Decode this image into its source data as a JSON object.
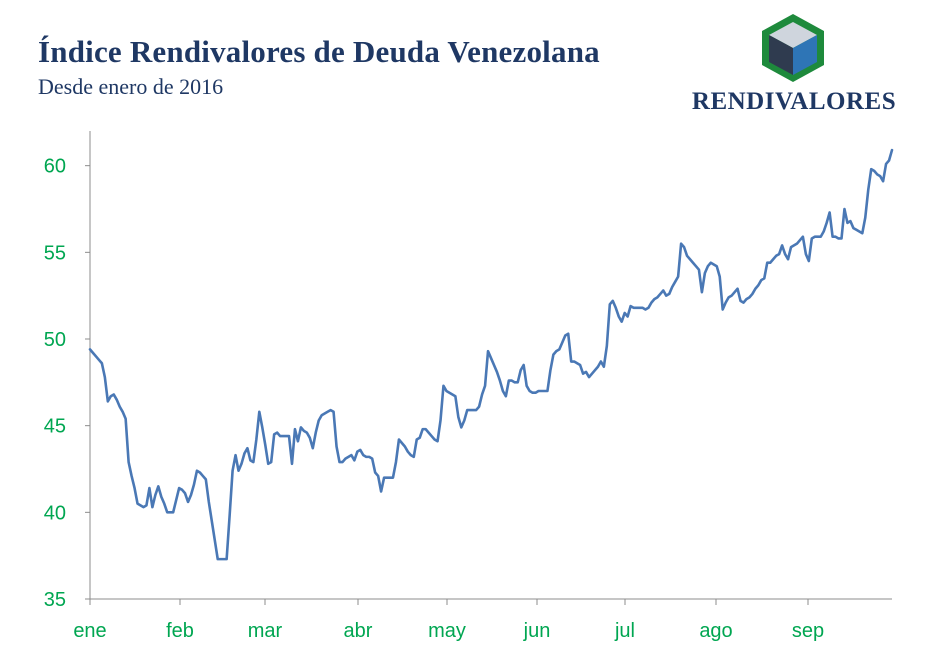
{
  "title": "Índice Rendivalores de Deuda Venezolana",
  "subtitle": "Desde enero de 2016",
  "logo": {
    "text": "RENDIVALORES",
    "colors": {
      "green": "#1e8a3c",
      "blue": "#2e75b6",
      "dark": "#2f3b4f",
      "light": "#cfd5dd"
    }
  },
  "colors": {
    "line": "#4a78b5",
    "tick_text": "#00a651",
    "title": "#1f3864",
    "axis": "#8c8c8c"
  },
  "chart_data": {
    "type": "line",
    "title": "Índice Rendivalores de Deuda Venezolana",
    "xlabel": "",
    "ylabel": "",
    "ylim": [
      35,
      62
    ],
    "yticks": [
      35,
      40,
      45,
      50,
      55,
      60
    ],
    "xticks": [
      "ene",
      "feb",
      "mar",
      "abr",
      "may",
      "jun",
      "jul",
      "ago",
      "sep"
    ],
    "grid": false,
    "series": [
      {
        "values": [
          49.4,
          49.2,
          49.0,
          48.8,
          48.6,
          47.8,
          46.4,
          46.7,
          46.8,
          46.5,
          46.1,
          45.8,
          45.4,
          42.9,
          42.1,
          41.4,
          40.5,
          40.4,
          40.3,
          40.4,
          41.4,
          40.3,
          41.0,
          41.5,
          40.9,
          40.5,
          40.0,
          40.0,
          40.0,
          40.7,
          41.4,
          41.3,
          41.1,
          40.6,
          41.0,
          41.6,
          42.4,
          42.3,
          42.1,
          41.9,
          40.6,
          39.5,
          38.4,
          37.3,
          37.3,
          37.3,
          37.3,
          39.8,
          42.4,
          43.3,
          42.4,
          42.8,
          43.4,
          43.7,
          43.0,
          42.9,
          44.2,
          45.8,
          44.9,
          43.9,
          42.8,
          42.9,
          44.5,
          44.6,
          44.4,
          44.4,
          44.4,
          44.4,
          42.8,
          44.8,
          44.1,
          44.9,
          44.7,
          44.6,
          44.3,
          43.7,
          44.6,
          45.3,
          45.6,
          45.7,
          45.8,
          45.9,
          45.8,
          43.8,
          42.9,
          42.9,
          43.1,
          43.2,
          43.3,
          43.0,
          43.5,
          43.6,
          43.3,
          43.2,
          43.2,
          43.1,
          42.3,
          42.1,
          41.2,
          42.0,
          42.0,
          42.0,
          42.0,
          42.9,
          44.2,
          44.0,
          43.8,
          43.5,
          43.3,
          43.2,
          44.2,
          44.3,
          44.8,
          44.8,
          44.6,
          44.4,
          44.2,
          44.1,
          45.3,
          47.3,
          47.0,
          46.9,
          46.8,
          46.7,
          45.5,
          44.9,
          45.3,
          45.9,
          45.9,
          45.9,
          45.9,
          46.1,
          46.8,
          47.3,
          49.3,
          48.9,
          48.5,
          48.1,
          47.6,
          47.0,
          46.7,
          47.6,
          47.6,
          47.5,
          47.5,
          48.2,
          48.5,
          47.3,
          47.0,
          46.9,
          46.9,
          47.0,
          47.0,
          47.0,
          47.0,
          48.2,
          49.1,
          49.3,
          49.4,
          49.8,
          50.2,
          50.3,
          48.7,
          48.7,
          48.6,
          48.5,
          48.0,
          48.1,
          47.8,
          48.0,
          48.2,
          48.4,
          48.7,
          48.4,
          49.6,
          52.0,
          52.2,
          51.8,
          51.3,
          51.0,
          51.5,
          51.3,
          51.9,
          51.8,
          51.8,
          51.8,
          51.8,
          51.7,
          51.8,
          52.1,
          52.3,
          52.4,
          52.6,
          52.8,
          52.5,
          52.6,
          53.0,
          53.3,
          53.6,
          55.5,
          55.3,
          54.8,
          54.6,
          54.4,
          54.2,
          54.0,
          52.7,
          53.8,
          54.2,
          54.4,
          54.3,
          54.2,
          53.6,
          51.7,
          52.1,
          52.4,
          52.5,
          52.7,
          52.9,
          52.2,
          52.1,
          52.3,
          52.4,
          52.6,
          52.9,
          53.1,
          53.4,
          53.5,
          54.4,
          54.4,
          54.6,
          54.8,
          54.9,
          55.4,
          54.9,
          54.6,
          55.3,
          55.4,
          55.5,
          55.7,
          55.9,
          54.9,
          54.5,
          55.8,
          55.9,
          55.9,
          55.9,
          56.2,
          56.7,
          57.3,
          55.9,
          55.9,
          55.8,
          55.8,
          57.5,
          56.7,
          56.8,
          56.4,
          56.3,
          56.2,
          56.1,
          57.0,
          58.6,
          59.8,
          59.7,
          59.5,
          59.4,
          59.1,
          60.1,
          60.3,
          60.9
        ]
      }
    ]
  }
}
